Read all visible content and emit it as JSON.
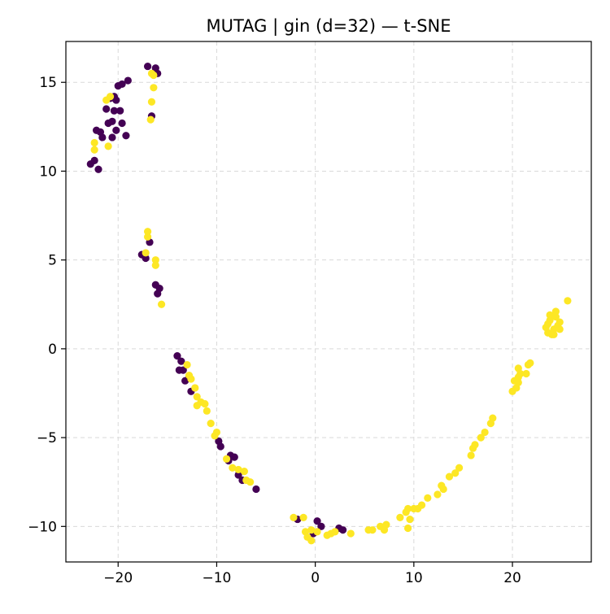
{
  "chart_data": {
    "type": "scatter",
    "title": "MUTAG | gin (d=32) — t-SNE",
    "xlabel": "",
    "ylabel": "",
    "xlim": [
      -25.3,
      28.0
    ],
    "ylim": [
      -12.0,
      17.3
    ],
    "xticks": [
      -20,
      -10,
      0,
      10,
      20
    ],
    "yticks": [
      -10,
      -5,
      0,
      5,
      10,
      15
    ],
    "xtick_labels": [
      "−20",
      "−10",
      "0",
      "10",
      "20"
    ],
    "ytick_labels": [
      "−10",
      "−5",
      "0",
      "5",
      "10",
      "15"
    ],
    "grid": true,
    "legend": "none",
    "colors": {
      "class_0": "#440154",
      "class_1": "#fde725"
    },
    "series": [
      {
        "color": "#440154",
        "points": [
          [
            -22.8,
            10.4
          ],
          [
            -22.4,
            10.6
          ],
          [
            -22.0,
            10.1
          ],
          [
            -21.6,
            11.9
          ],
          [
            -21.8,
            12.2
          ],
          [
            -22.2,
            12.3
          ],
          [
            -21.0,
            12.7
          ],
          [
            -20.6,
            12.8
          ],
          [
            -20.2,
            12.3
          ],
          [
            -20.6,
            11.9
          ],
          [
            -19.2,
            12.0
          ],
          [
            -19.6,
            12.7
          ],
          [
            -21.2,
            13.5
          ],
          [
            -20.4,
            13.4
          ],
          [
            -19.8,
            13.4
          ],
          [
            -20.8,
            14.1
          ],
          [
            -20.4,
            14.2
          ],
          [
            -20.2,
            14.0
          ],
          [
            -20.0,
            14.8
          ],
          [
            -19.6,
            14.9
          ],
          [
            -19.0,
            15.1
          ],
          [
            -17.0,
            15.9
          ],
          [
            -16.2,
            15.8
          ],
          [
            -16.0,
            15.5
          ],
          [
            -16.6,
            13.1
          ],
          [
            -17.6,
            5.3
          ],
          [
            -17.2,
            5.1
          ],
          [
            -16.8,
            6.0
          ],
          [
            -16.2,
            3.6
          ],
          [
            -15.8,
            3.4
          ],
          [
            -16.0,
            3.1
          ],
          [
            -14.0,
            -0.4
          ],
          [
            -13.6,
            -0.7
          ],
          [
            -13.4,
            -1.2
          ],
          [
            -13.8,
            -1.2
          ],
          [
            -13.2,
            -1.8
          ],
          [
            -12.8,
            -1.6
          ],
          [
            -12.6,
            -2.4
          ],
          [
            -9.8,
            -5.2
          ],
          [
            -9.6,
            -5.5
          ],
          [
            -8.6,
            -6.0
          ],
          [
            -8.8,
            -6.3
          ],
          [
            -8.2,
            -6.1
          ],
          [
            -7.8,
            -7.1
          ],
          [
            -7.4,
            -7.4
          ],
          [
            -6.0,
            -7.9
          ],
          [
            -1.8,
            -9.6
          ],
          [
            0.2,
            -9.7
          ],
          [
            0.6,
            -10.0
          ],
          [
            -0.2,
            -10.4
          ],
          [
            2.4,
            -10.1
          ],
          [
            2.8,
            -10.2
          ]
        ]
      },
      {
        "color": "#fde725",
        "points": [
          [
            -22.4,
            11.6
          ],
          [
            -22.4,
            11.2
          ],
          [
            -21.0,
            11.4
          ],
          [
            -21.2,
            14.0
          ],
          [
            -20.8,
            14.2
          ],
          [
            -16.6,
            13.9
          ],
          [
            -16.4,
            14.7
          ],
          [
            -16.4,
            15.4
          ],
          [
            -16.6,
            15.5
          ],
          [
            -16.7,
            12.9
          ],
          [
            -17.0,
            6.6
          ],
          [
            -17.0,
            6.3
          ],
          [
            -17.2,
            5.4
          ],
          [
            -16.2,
            5.0
          ],
          [
            -16.2,
            4.7
          ],
          [
            -15.6,
            2.5
          ],
          [
            -13.0,
            -0.9
          ],
          [
            -12.8,
            -1.5
          ],
          [
            -12.6,
            -1.7
          ],
          [
            -12.2,
            -2.2
          ],
          [
            -12.0,
            -2.7
          ],
          [
            -11.6,
            -3.0
          ],
          [
            -12.0,
            -3.2
          ],
          [
            -11.2,
            -3.1
          ],
          [
            -11.0,
            -3.5
          ],
          [
            -10.6,
            -4.2
          ],
          [
            -10.0,
            -4.7
          ],
          [
            -10.2,
            -4.9
          ],
          [
            -9.0,
            -6.2
          ],
          [
            -8.4,
            -6.7
          ],
          [
            -7.8,
            -6.8
          ],
          [
            -7.2,
            -6.9
          ],
          [
            -7.0,
            -7.4
          ],
          [
            -6.6,
            -7.5
          ],
          [
            -2.2,
            -9.5
          ],
          [
            -1.2,
            -9.5
          ],
          [
            -0.4,
            -10.2
          ],
          [
            -1.0,
            -10.3
          ],
          [
            -0.8,
            -10.6
          ],
          [
            -0.4,
            -10.8
          ],
          [
            0.2,
            -10.3
          ],
          [
            1.2,
            -10.5
          ],
          [
            1.6,
            -10.4
          ],
          [
            2.0,
            -10.3
          ],
          [
            3.6,
            -10.4
          ],
          [
            5.4,
            -10.2
          ],
          [
            5.8,
            -10.2
          ],
          [
            6.6,
            -10.0
          ],
          [
            7.2,
            -9.9
          ],
          [
            7.0,
            -10.2
          ],
          [
            8.6,
            -9.5
          ],
          [
            9.2,
            -9.2
          ],
          [
            9.4,
            -9.0
          ],
          [
            9.6,
            -9.6
          ],
          [
            10.0,
            -9.0
          ],
          [
            10.4,
            -9.0
          ],
          [
            9.4,
            -10.1
          ],
          [
            10.8,
            -8.8
          ],
          [
            11.4,
            -8.4
          ],
          [
            12.4,
            -8.2
          ],
          [
            12.8,
            -7.7
          ],
          [
            13.0,
            -7.9
          ],
          [
            13.6,
            -7.2
          ],
          [
            14.2,
            -7.0
          ],
          [
            14.6,
            -6.7
          ],
          [
            15.8,
            -6.0
          ],
          [
            16.0,
            -5.6
          ],
          [
            16.2,
            -5.4
          ],
          [
            16.8,
            -5.0
          ],
          [
            17.2,
            -4.7
          ],
          [
            17.8,
            -4.2
          ],
          [
            18.0,
            -3.9
          ],
          [
            20.0,
            -2.4
          ],
          [
            20.4,
            -2.2
          ],
          [
            20.2,
            -1.8
          ],
          [
            20.6,
            -1.6
          ],
          [
            20.8,
            -1.4
          ],
          [
            20.6,
            -1.1
          ],
          [
            21.4,
            -1.4
          ],
          [
            21.6,
            -0.9
          ],
          [
            21.8,
            -0.8
          ],
          [
            23.4,
            1.2
          ],
          [
            23.6,
            0.9
          ],
          [
            23.8,
            1.6
          ],
          [
            23.8,
            1.9
          ],
          [
            24.0,
            0.8
          ],
          [
            24.2,
            1.1
          ],
          [
            24.4,
            1.8
          ],
          [
            24.4,
            2.1
          ],
          [
            24.6,
            1.3
          ],
          [
            24.8,
            1.5
          ],
          [
            24.8,
            1.1
          ],
          [
            25.6,
            2.7
          ],
          [
            23.6,
            1.4
          ],
          [
            24.2,
            0.8
          ],
          [
            20.6,
            -1.9
          ]
        ]
      }
    ]
  }
}
